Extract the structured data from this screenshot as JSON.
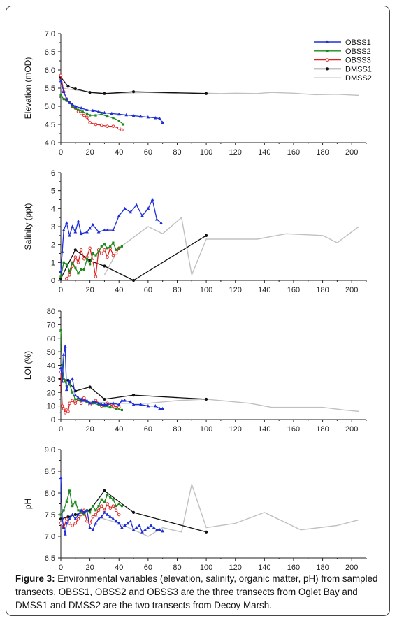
{
  "figure": {
    "caption_label": "Figure 3:",
    "caption_text": " Environmental variables (elevation, salinity, organic matter, pH) from sampled transects. OBSS1, OBSS2 and OBSS3 are the three transects from Oglet Bay and DMSS1 and DMSS2 are the two transects from Decoy Marsh."
  },
  "legend": [
    {
      "name": "OBSS1",
      "color": "#1f2fd6",
      "marker": "triangle"
    },
    {
      "name": "OBSS2",
      "color": "#1e8a1e",
      "marker": "square"
    },
    {
      "name": "OBSS3",
      "color": "#e02020",
      "marker": "circle-open"
    },
    {
      "name": "DMSS1",
      "color": "#111111",
      "marker": "circle"
    },
    {
      "name": "DMSS2",
      "color": "#c0c0c0",
      "marker": "none"
    }
  ],
  "chart_data": [
    {
      "type": "line",
      "ylabel": "Elevation (mOD)",
      "xlim": [
        0,
        210
      ],
      "ylim": [
        4.0,
        7.0
      ],
      "xticks": [
        "0",
        "20",
        "40",
        "60",
        "80",
        "100",
        "120",
        "140",
        "160",
        "180",
        "200"
      ],
      "yticks": [
        "4.0",
        "4.5",
        "5.0",
        "5.5",
        "6.0",
        "6.5",
        "7.0"
      ],
      "series": [
        {
          "name": "OBSS1",
          "x": [
            0,
            2,
            4,
            6,
            8,
            10,
            14,
            18,
            22,
            26,
            30,
            35,
            40,
            45,
            50,
            55,
            60,
            65,
            68,
            70
          ],
          "y": [
            5.7,
            5.4,
            5.2,
            5.1,
            5.05,
            5.0,
            4.95,
            4.9,
            4.88,
            4.85,
            4.82,
            4.8,
            4.78,
            4.76,
            4.74,
            4.72,
            4.7,
            4.68,
            4.66,
            4.55
          ]
        },
        {
          "name": "OBSS2",
          "x": [
            0,
            2,
            4,
            6,
            8,
            10,
            12,
            15,
            18,
            20,
            24,
            28,
            32,
            36,
            40,
            43
          ],
          "y": [
            5.3,
            5.2,
            5.15,
            5.1,
            5.0,
            4.95,
            4.9,
            4.85,
            4.8,
            4.75,
            4.75,
            4.78,
            4.72,
            4.68,
            4.6,
            4.5
          ]
        },
        {
          "name": "OBSS3",
          "x": [
            0,
            2,
            4,
            6,
            8,
            10,
            12,
            14,
            16,
            18,
            20,
            24,
            28,
            32,
            36,
            40,
            42
          ],
          "y": [
            5.85,
            5.4,
            5.2,
            5.1,
            5.0,
            4.95,
            4.85,
            4.8,
            4.75,
            4.7,
            4.55,
            4.5,
            4.48,
            4.45,
            4.45,
            4.4,
            4.35
          ]
        },
        {
          "name": "DMSS1",
          "x": [
            0,
            5,
            10,
            20,
            30,
            50,
            100
          ],
          "y": [
            5.8,
            5.55,
            5.48,
            5.38,
            5.35,
            5.4,
            5.35
          ]
        },
        {
          "name": "DMSS2",
          "x": [
            0,
            30,
            60,
            75,
            90,
            100,
            110,
            120,
            135,
            145,
            160,
            175,
            190,
            205
          ],
          "y": [
            5.5,
            5.35,
            5.38,
            5.36,
            5.37,
            5.36,
            5.35,
            5.36,
            5.35,
            5.38,
            5.36,
            5.32,
            5.33,
            5.3
          ]
        }
      ]
    },
    {
      "type": "line",
      "ylabel": "Salinity (ppt)",
      "xlim": [
        0,
        210
      ],
      "ylim": [
        0,
        6
      ],
      "xticks": [
        "0",
        "20",
        "40",
        "60",
        "80",
        "100",
        "120",
        "140",
        "160",
        "180",
        "200"
      ],
      "yticks": [
        "0",
        "1",
        "2",
        "3",
        "4",
        "5",
        "6"
      ],
      "series": [
        {
          "name": "OBSS1",
          "x": [
            0,
            1,
            2,
            4,
            6,
            8,
            10,
            12,
            14,
            18,
            20,
            22,
            26,
            30,
            32,
            36,
            40,
            44,
            48,
            52,
            56,
            60,
            63,
            66,
            69
          ],
          "y": [
            0.5,
            1.6,
            2.8,
            3.2,
            2.5,
            3.0,
            2.7,
            3.3,
            2.6,
            2.7,
            2.9,
            3.1,
            2.7,
            2.8,
            2.8,
            2.8,
            3.6,
            4.0,
            3.8,
            4.2,
            3.6,
            4.0,
            4.5,
            3.4,
            3.2
          ]
        },
        {
          "name": "OBSS2",
          "x": [
            0,
            2,
            4,
            6,
            8,
            10,
            12,
            14,
            16,
            18,
            20,
            22,
            24,
            26,
            28,
            30,
            32,
            34,
            36,
            38,
            40,
            42
          ],
          "y": [
            0.2,
            1.0,
            0.9,
            0.5,
            1.0,
            0.7,
            0.4,
            0.6,
            0.6,
            1.2,
            0.9,
            1.5,
            1.4,
            1.6,
            1.9,
            2.0,
            1.8,
            1.9,
            2.1,
            1.7,
            1.8,
            1.9
          ]
        },
        {
          "name": "OBSS3",
          "x": [
            4,
            6,
            8,
            10,
            12,
            14,
            16,
            18,
            20,
            22,
            24,
            26,
            28,
            30,
            32,
            34,
            36,
            38,
            40
          ],
          "y": [
            0.1,
            0.3,
            0.8,
            1.3,
            1.0,
            1.7,
            1.2,
            1.3,
            1.8,
            1.1,
            0.2,
            1.7,
            1.5,
            1.7,
            1.3,
            1.8,
            1.4,
            1.5,
            1.8
          ]
        },
        {
          "name": "DMSS1",
          "x": [
            0,
            10,
            20,
            30,
            50,
            100
          ],
          "y": [
            0.1,
            1.7,
            1.1,
            0.8,
            0.0,
            2.5
          ]
        },
        {
          "name": "DMSS2",
          "x": [
            30,
            40,
            50,
            60,
            70,
            83,
            90,
            100,
            135,
            155,
            180,
            190,
            205
          ],
          "y": [
            0.3,
            1.8,
            2.4,
            3.0,
            2.6,
            3.5,
            0.3,
            2.3,
            2.3,
            2.6,
            2.5,
            2.1,
            3.0
          ]
        }
      ]
    },
    {
      "type": "line",
      "ylabel": "LOI (%)",
      "xlim": [
        0,
        210
      ],
      "ylim": [
        0,
        80
      ],
      "xticks": [
        "0",
        "20",
        "40",
        "60",
        "80",
        "100",
        "120",
        "140",
        "160",
        "180",
        "200"
      ],
      "yticks": [
        "0",
        "10",
        "20",
        "30",
        "40",
        "50",
        "60",
        "70",
        "80"
      ],
      "series": [
        {
          "name": "OBSS1",
          "x": [
            0,
            1,
            2,
            3,
            4,
            6,
            8,
            10,
            12,
            14,
            16,
            18,
            20,
            22,
            24,
            26,
            28,
            30,
            32,
            36,
            40,
            42,
            44,
            48,
            50,
            55,
            60,
            65,
            68,
            70
          ],
          "y": [
            38,
            28,
            48,
            54,
            22,
            28,
            30,
            18,
            16,
            15,
            14,
            14,
            12,
            13,
            13,
            12,
            11,
            11,
            11,
            12,
            11,
            14,
            14,
            13,
            11,
            11,
            10,
            10,
            8,
            8
          ]
        },
        {
          "name": "OBSS2",
          "x": [
            0,
            1,
            2,
            3,
            4,
            6,
            8,
            10,
            14,
            18,
            22,
            26,
            30,
            34,
            38,
            42
          ],
          "y": [
            66,
            40,
            30,
            28,
            25,
            26,
            20,
            15,
            14,
            13,
            12,
            11,
            10,
            9,
            8,
            7
          ]
        },
        {
          "name": "OBSS3",
          "x": [
            0,
            1,
            2,
            3,
            4,
            5,
            6,
            8,
            10,
            12,
            14,
            16,
            18,
            20,
            24,
            28,
            32,
            36,
            40
          ],
          "y": [
            35,
            10,
            8,
            5,
            7,
            6,
            12,
            14,
            12,
            15,
            12,
            16,
            13,
            11,
            14,
            10,
            12,
            10,
            9
          ]
        },
        {
          "name": "DMSS1",
          "x": [
            0,
            5,
            10,
            20,
            30,
            50,
            100
          ],
          "y": [
            30,
            29,
            21,
            24,
            15,
            18,
            15
          ]
        },
        {
          "name": "DMSS2",
          "x": [
            20,
            40,
            60,
            80,
            100,
            130,
            145,
            160,
            180,
            195,
            205
          ],
          "y": [
            13,
            12,
            12,
            14,
            15,
            12,
            9,
            9,
            9,
            7,
            6
          ]
        }
      ]
    },
    {
      "type": "line",
      "ylabel": "pH",
      "xlim": [
        0,
        210
      ],
      "ylim": [
        6.5,
        9.0
      ],
      "xticks": [
        "0",
        "20",
        "40",
        "60",
        "80",
        "100",
        "120",
        "140",
        "160",
        "180",
        "200"
      ],
      "yticks": [
        "6.5",
        "7.0",
        "7.5",
        "8.0",
        "8.5",
        "9.0"
      ],
      "series": [
        {
          "name": "OBSS1",
          "x": [
            0,
            1,
            2,
            3,
            4,
            6,
            8,
            10,
            12,
            14,
            16,
            18,
            20,
            22,
            24,
            26,
            28,
            30,
            32,
            34,
            36,
            38,
            40,
            42,
            44,
            46,
            48,
            50,
            52,
            54,
            56,
            58,
            60,
            62,
            64,
            66,
            68,
            70
          ],
          "y": [
            8.35,
            7.4,
            7.2,
            7.05,
            7.3,
            7.4,
            7.5,
            7.4,
            7.5,
            7.6,
            7.55,
            7.6,
            7.2,
            7.15,
            7.3,
            7.4,
            7.45,
            7.55,
            7.5,
            7.45,
            7.4,
            7.35,
            7.3,
            7.2,
            7.25,
            7.3,
            7.35,
            7.15,
            7.2,
            7.25,
            7.1,
            7.15,
            7.2,
            7.25,
            7.2,
            7.15,
            7.15,
            7.12
          ]
        },
        {
          "name": "OBSS2",
          "x": [
            0,
            2,
            4,
            6,
            8,
            10,
            12,
            14,
            16,
            18,
            20,
            22,
            24,
            26,
            28,
            30,
            32,
            34,
            36,
            38,
            40,
            42
          ],
          "y": [
            7.5,
            7.6,
            7.8,
            8.05,
            7.7,
            7.8,
            7.6,
            7.55,
            7.5,
            7.6,
            7.55,
            7.7,
            7.6,
            7.7,
            7.85,
            7.8,
            7.95,
            7.9,
            7.85,
            7.7,
            7.75,
            7.7
          ]
        },
        {
          "name": "OBSS3",
          "x": [
            0,
            2,
            4,
            6,
            8,
            10,
            12,
            14,
            16,
            18,
            20,
            22,
            24,
            26,
            28,
            30,
            32,
            34,
            36,
            38,
            40
          ],
          "y": [
            7.3,
            7.2,
            7.4,
            7.3,
            7.25,
            7.3,
            7.4,
            7.5,
            7.6,
            7.35,
            7.3,
            7.45,
            7.5,
            7.6,
            7.7,
            7.6,
            7.75,
            7.65,
            7.7,
            7.6,
            7.5
          ]
        },
        {
          "name": "DMSS1",
          "x": [
            0,
            5,
            10,
            20,
            30,
            50,
            100
          ],
          "y": [
            7.4,
            7.45,
            7.5,
            7.6,
            8.05,
            7.55,
            7.1
          ]
        },
        {
          "name": "DMSS2",
          "x": [
            20,
            40,
            60,
            70,
            83,
            90,
            100,
            120,
            140,
            165,
            190,
            205
          ],
          "y": [
            7.5,
            7.3,
            7.0,
            7.2,
            7.1,
            8.2,
            7.2,
            7.3,
            7.55,
            7.15,
            7.25,
            7.38
          ]
        }
      ]
    }
  ]
}
